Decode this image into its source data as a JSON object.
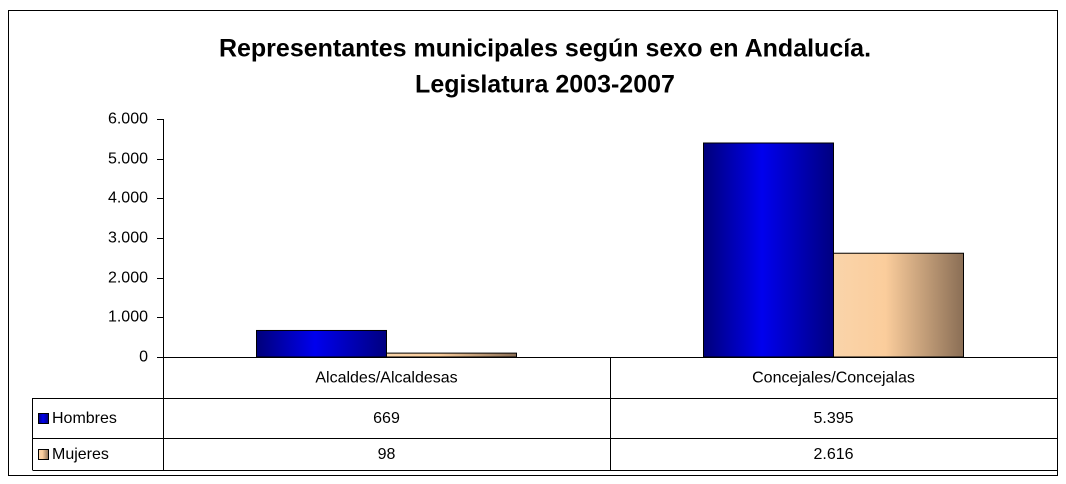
{
  "chart_data": {
    "type": "bar",
    "title": [
      "Representantes municipales según sexo en Andalucía.",
      "Legislatura 2003-2007"
    ],
    "categories": [
      "Alcaldes/Alcaldesas",
      "Concejales/Concejalas"
    ],
    "series": [
      {
        "name": "Hombres",
        "color": "#0000cc",
        "values": [
          669,
          5395
        ],
        "value_labels": [
          "669",
          "5.395"
        ]
      },
      {
        "name": "Mujeres",
        "color": "#f5c898",
        "values": [
          98,
          2616
        ],
        "value_labels": [
          "98",
          "2.616"
        ]
      }
    ],
    "ylim": [
      0,
      6000
    ],
    "yticks": [
      0,
      {
        "value": 1000,
        "label": "1.000"
      },
      {
        "value": 2000,
        "label": "2.000"
      },
      {
        "value": 3000,
        "label": "3.000"
      },
      {
        "value": 4000,
        "label": "4.000"
      },
      {
        "value": 5000,
        "label": "5.000"
      },
      {
        "value": 6000,
        "label": "6.000"
      }
    ],
    "data_table": true
  }
}
